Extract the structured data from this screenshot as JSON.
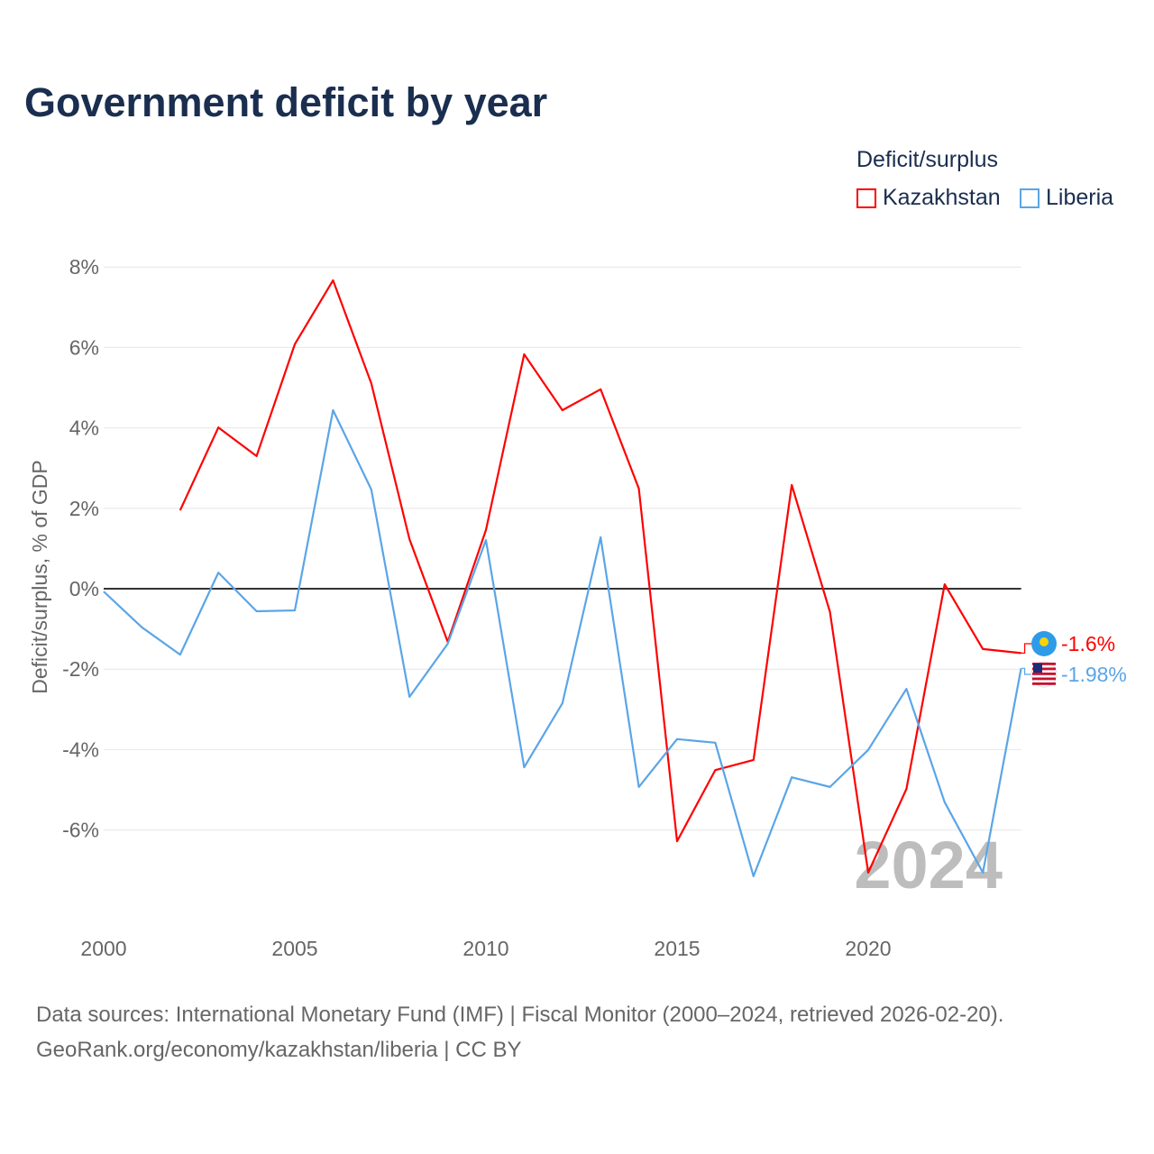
{
  "title": "Government deficit by year",
  "legend": {
    "title": "Deficit/surplus",
    "items": [
      {
        "name": "Kazakhstan",
        "color": "#ff0000"
      },
      {
        "name": "Liberia",
        "color": "#5aa5e8"
      }
    ]
  },
  "footer": {
    "line1": "Data sources: International Monetary Fund (IMF) | Fiscal Monitor (2000–2024, retrieved 2026-02-20).",
    "line2": "GeoRank.org/economy/kazakhstan/liberia | CC BY"
  },
  "chart_data": {
    "type": "line",
    "title": "Government deficit by year",
    "xlabel": "",
    "ylabel": "Deficit/surplus, % of GDP",
    "xlim": [
      2000,
      2024
    ],
    "ylim": [
      -8,
      8
    ],
    "x_ticks": [
      2000,
      2005,
      2010,
      2015,
      2020
    ],
    "x_tick_labels": [
      "2000",
      "2005",
      "2010",
      "2015",
      "2020"
    ],
    "y_ticks": [
      8,
      6,
      4,
      2,
      0,
      -2,
      -4,
      -6
    ],
    "y_tick_labels": [
      "8%",
      "6%",
      "4%",
      "2%",
      "0%",
      "-2%",
      "-4%",
      "-6%"
    ],
    "grid": true,
    "legend_position": "top-right",
    "watermark": "2024",
    "series": [
      {
        "name": "Kazakhstan",
        "color": "#ff0000",
        "end_label": "-1.6%",
        "x": [
          2002,
          2003,
          2004,
          2005,
          2006,
          2007,
          2008,
          2009,
          2010,
          2011,
          2012,
          2013,
          2014,
          2015,
          2016,
          2017,
          2018,
          2019,
          2020,
          2021,
          2022,
          2023,
          2024
        ],
        "values": [
          1.95,
          4.01,
          3.3,
          6.08,
          7.67,
          5.11,
          1.23,
          -1.32,
          1.46,
          5.83,
          4.44,
          4.96,
          2.49,
          -6.28,
          -4.51,
          -4.26,
          2.58,
          -0.58,
          -7.06,
          -4.98,
          0.11,
          -1.5,
          -1.6
        ]
      },
      {
        "name": "Liberia",
        "color": "#5aa5e8",
        "end_label": "-1.98%",
        "x": [
          2000,
          2001,
          2002,
          2003,
          2004,
          2005,
          2006,
          2007,
          2008,
          2009,
          2010,
          2011,
          2012,
          2013,
          2014,
          2015,
          2016,
          2017,
          2018,
          2019,
          2020,
          2021,
          2022,
          2023,
          2024
        ],
        "values": [
          -0.07,
          -0.96,
          -1.64,
          0.4,
          -0.56,
          -0.54,
          4.44,
          2.47,
          -2.69,
          -1.37,
          1.21,
          -4.44,
          -2.85,
          1.28,
          -4.93,
          -3.74,
          -3.83,
          -7.15,
          -4.69,
          -4.93,
          -4.01,
          -2.49,
          -5.31,
          -7.06,
          -1.98
        ]
      }
    ]
  }
}
